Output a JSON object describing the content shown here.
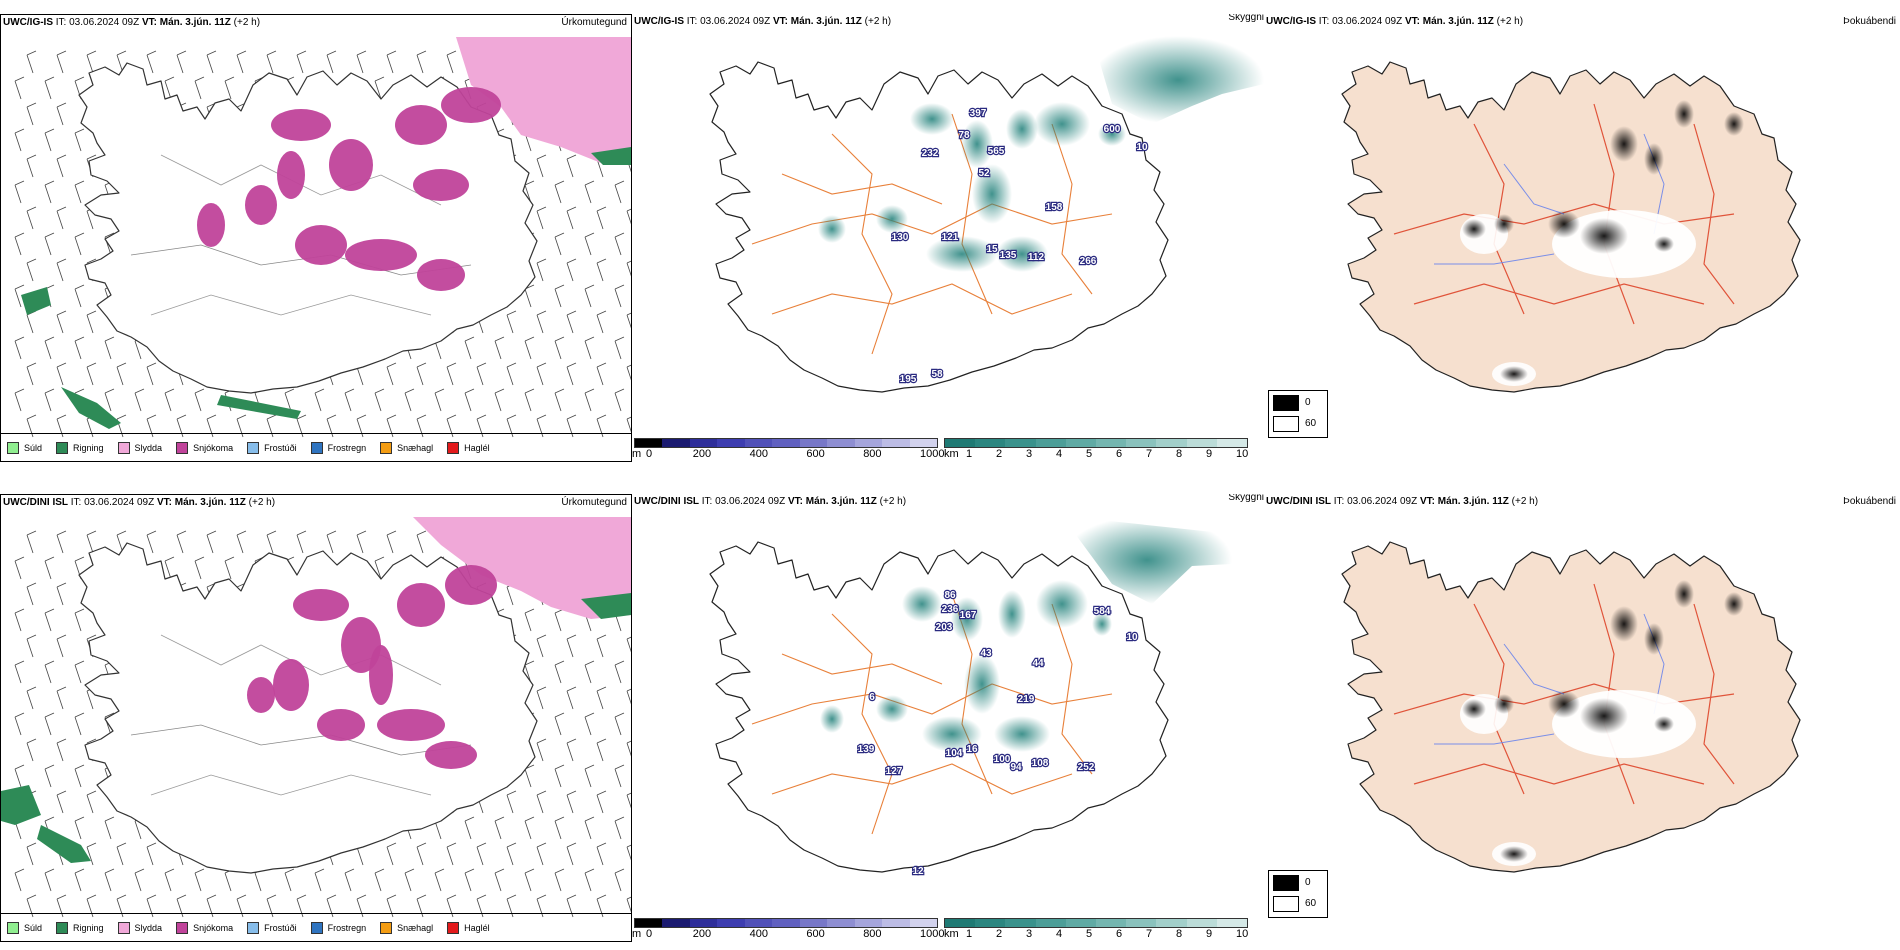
{
  "rows": [
    {
      "model": "UWC/IG-IS",
      "it_label": "IT:",
      "it_value": "03.06.2024 09Z",
      "vt_label": "VT:",
      "vt_value": "Mán. 3.jún. 11Z",
      "lead": "(+2 h)",
      "precip_title": "Úrkomutegund",
      "cloud_title": "Skyggni",
      "fog_title": "Þokuábendi",
      "visibility_labels": [
        "397",
        "78",
        "565",
        "232",
        "52",
        "600",
        "10",
        "158",
        "130",
        "121",
        "15",
        "135",
        "112",
        "266",
        "195",
        "58"
      ]
    },
    {
      "model": "UWC/DINI ISL",
      "it_label": "IT:",
      "it_value": "03.06.2024 09Z",
      "vt_label": "VT:",
      "vt_value": "Mán. 3.jún. 11Z",
      "lead": "(+2 h)",
      "precip_title": "Úrkomutegund",
      "cloud_title": "Skyggni",
      "fog_title": "Þokuábendi",
      "visibility_labels": [
        "86",
        "236",
        "167",
        "203",
        "43",
        "584",
        "10",
        "44",
        "219",
        "6",
        "139",
        "104",
        "16",
        "100",
        "94",
        "108",
        "252",
        "127",
        "12"
      ]
    }
  ],
  "precip_legend": [
    {
      "label": "Súld",
      "color": "#90ee90"
    },
    {
      "label": "Rigning",
      "color": "#2e8b57"
    },
    {
      "label": "Slydda",
      "color": "#f0a8d8"
    },
    {
      "label": "Snjókoma",
      "color": "#c0439a"
    },
    {
      "label": "Frostúði",
      "color": "#87bdea"
    },
    {
      "label": "Frostregn",
      "color": "#2f74c0"
    },
    {
      "label": "Snæhagl",
      "color": "#f39c12"
    },
    {
      "label": "Haglél",
      "color": "#e31a1c"
    }
  ],
  "ceiling_scale": {
    "unit": "m",
    "ticks": [
      "0",
      "200",
      "400",
      "600",
      "800",
      "1000"
    ],
    "colors": [
      "#000000",
      "#1a1a70",
      "#2e2e9a",
      "#3d3db0",
      "#5050b8",
      "#6060c0",
      "#7777c8",
      "#8e8ed2",
      "#a5a5dc",
      "#bcbce5",
      "#d3d3ee"
    ]
  },
  "visibility_scale": {
    "unit": "km",
    "ticks": [
      "1",
      "2",
      "3",
      "4",
      "5",
      "6",
      "7",
      "8",
      "9",
      "10"
    ],
    "colors": [
      "#1f7a74",
      "#2b8680",
      "#3a928c",
      "#4c9e98",
      "#5faaa4",
      "#74b6b0",
      "#8ac2bd",
      "#a2cfca",
      "#bbdcd8",
      "#d5e9e7"
    ]
  },
  "fog_scale": {
    "items": [
      {
        "label": "0",
        "color": "#000000"
      },
      {
        "label": "60",
        "color": "#ffffff"
      }
    ]
  },
  "colors": {
    "snow": "#c0439a",
    "sleet": "#f0a8d8",
    "rain": "#2e8b57",
    "road": "#e8803a",
    "fog_land": "#f6e0cf",
    "fog_road": "#e0543a",
    "river": "#7a8ee8",
    "teal": "#2b8680"
  }
}
